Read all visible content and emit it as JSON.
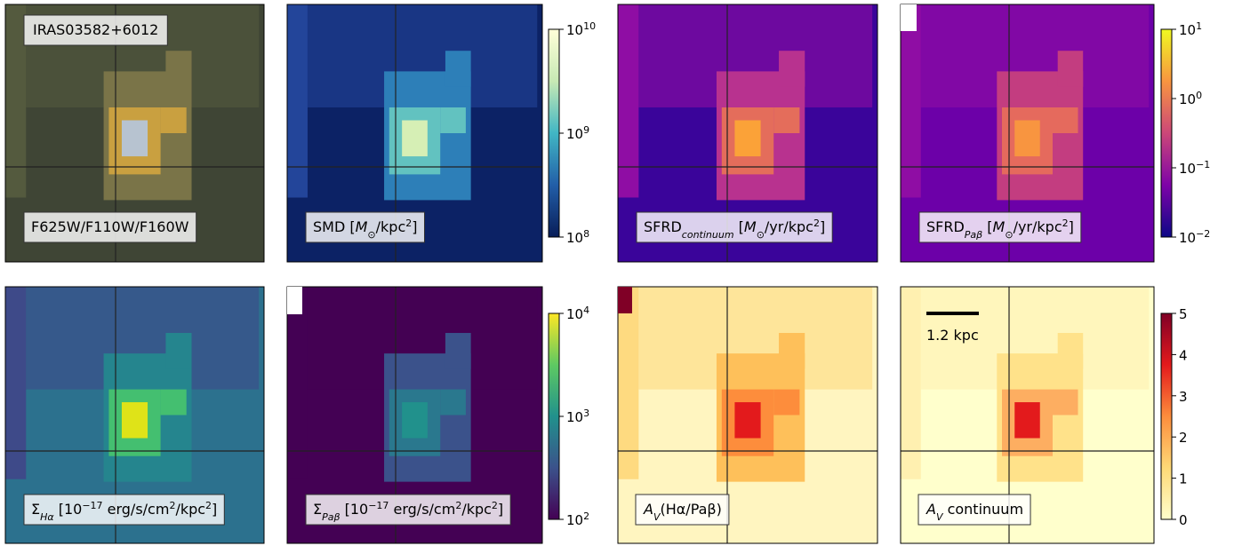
{
  "title": "IRAS03582+6012",
  "scale_bar": "1.2 kpc",
  "panels": [
    {
      "label": [
        {
          "text": "F625W/F110W/F160W"
        }
      ]
    },
    {
      "label": [
        {
          "text": "SMD ["
        },
        {
          "text": "M",
          "style": "it"
        },
        {
          "text": "⊙",
          "style": "sub"
        },
        {
          "text": "/kpc"
        },
        {
          "text": "2",
          "style": "sup"
        },
        {
          "text": "]"
        }
      ]
    },
    {
      "label": [
        {
          "text": "SFRD"
        },
        {
          "text": "continuum",
          "style": "itsub"
        },
        {
          "text": " ["
        },
        {
          "text": "M",
          "style": "it"
        },
        {
          "text": "⊙",
          "style": "sub"
        },
        {
          "text": "/yr/kpc"
        },
        {
          "text": "2",
          "style": "sup"
        },
        {
          "text": "]"
        }
      ]
    },
    {
      "label": [
        {
          "text": "SFRD"
        },
        {
          "text": "Paβ",
          "style": "itsub"
        },
        {
          "text": " ["
        },
        {
          "text": "M",
          "style": "it"
        },
        {
          "text": "⊙",
          "style": "sub"
        },
        {
          "text": "/yr/kpc"
        },
        {
          "text": "2",
          "style": "sup"
        },
        {
          "text": "]"
        }
      ]
    },
    {
      "label": [
        {
          "text": "Σ"
        },
        {
          "text": "Hα",
          "style": "itsub"
        },
        {
          "text": " [10"
        },
        {
          "text": "−17",
          "style": "sup"
        },
        {
          "text": " erg/s/cm"
        },
        {
          "text": "2",
          "style": "sup"
        },
        {
          "text": "/kpc"
        },
        {
          "text": "2",
          "style": "sup"
        },
        {
          "text": "]"
        }
      ]
    },
    {
      "label": [
        {
          "text": "Σ"
        },
        {
          "text": "Paβ",
          "style": "itsub"
        },
        {
          "text": " [10"
        },
        {
          "text": "−17",
          "style": "sup"
        },
        {
          "text": " erg/s/cm"
        },
        {
          "text": "2",
          "style": "sup"
        },
        {
          "text": "/kpc"
        },
        {
          "text": "2",
          "style": "sup"
        },
        {
          "text": "]"
        }
      ]
    },
    {
      "label": [
        {
          "text": "A",
          "style": "it"
        },
        {
          "text": "V",
          "style": "itsub"
        },
        {
          "text": "(Hα/Paβ)"
        }
      ]
    },
    {
      "label": [
        {
          "text": "A",
          "style": "it"
        },
        {
          "text": "V",
          "style": "itsub"
        },
        {
          "text": " continuum"
        }
      ]
    }
  ],
  "colorbars": [
    {
      "scale": "log",
      "lim": [
        100000000,
        10000000000
      ],
      "colors": [
        "#081d58",
        "#225ea8",
        "#41b6c4",
        "#c7e9b4",
        "#ffffd9"
      ],
      "ticks": [
        {
          "value": 100000000,
          "label": "10",
          "sup": "8"
        },
        {
          "value": 1000000000,
          "label": "10",
          "sup": "9"
        },
        {
          "value": 10000000000,
          "label": "10",
          "sup": "10"
        }
      ]
    },
    {
      "scale": "log",
      "lim": [
        0.01,
        10
      ],
      "colors": [
        "#0d0887",
        "#7e03a8",
        "#cc4778",
        "#f89540",
        "#f0f921"
      ],
      "ticks": [
        {
          "value": 0.01,
          "label": "10",
          "sup": "−2"
        },
        {
          "value": 0.1,
          "label": "10",
          "sup": "−1"
        },
        {
          "value": 1,
          "label": "10",
          "sup": "0"
        },
        {
          "value": 10,
          "label": "10",
          "sup": "1"
        }
      ]
    },
    {
      "scale": "log",
      "lim": [
        100,
        10000
      ],
      "colors": [
        "#440154",
        "#3b528b",
        "#21918c",
        "#5ec962",
        "#fde725"
      ],
      "ticks": [
        {
          "value": 100,
          "label": "10",
          "sup": "2"
        },
        {
          "value": 1000,
          "label": "10",
          "sup": "3"
        },
        {
          "value": 10000,
          "label": "10",
          "sup": "4"
        }
      ]
    },
    {
      "scale": "linear",
      "lim": [
        0,
        5
      ],
      "colors": [
        "#ffffcc",
        "#fed976",
        "#fd8d3c",
        "#e31a1c",
        "#800026"
      ],
      "ticks": [
        0,
        1,
        2,
        3,
        4,
        5
      ]
    }
  ]
}
